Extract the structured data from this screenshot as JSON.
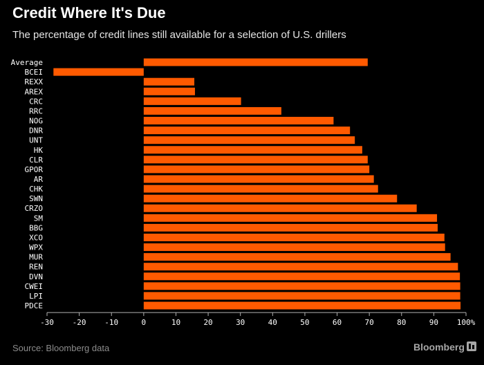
{
  "title": "Credit Where It's Due",
  "subtitle": "The percentage of credit lines still available for a selection of U.S. drillers",
  "source": "Source: Bloomberg data",
  "brand": "Bloomberg",
  "colors": {
    "background": "#000000",
    "bar": "#ff5a00",
    "text": "#ffffff",
    "axis": "#b3b3b3",
    "muted": "#8c8c8c"
  },
  "chart_data": {
    "type": "bar",
    "orientation": "horizontal",
    "categories": [
      "Average",
      "BCEI",
      "REXX",
      "AREX",
      "CRC",
      "RRC",
      "NOG",
      "DNR",
      "UNT",
      "HK",
      "CLR",
      "GPOR",
      "AR",
      "CHK",
      "SWN",
      "CRZO",
      "SM",
      "BBG",
      "XCO",
      "WPX",
      "MUR",
      "REN",
      "DVN",
      "CWEI",
      "LPI",
      "PDCE"
    ],
    "values": [
      69.5,
      -28,
      15.7,
      15.9,
      30.2,
      42.7,
      58.9,
      64,
      65.5,
      67.8,
      69.5,
      70,
      71.4,
      72.7,
      78.6,
      84.7,
      91,
      91.2,
      93.3,
      93.5,
      95.2,
      97.5,
      98.1,
      98.2,
      98.2,
      98.3
    ],
    "xlim": [
      -30,
      100
    ],
    "xticks": [
      -30,
      -20,
      -10,
      0,
      10,
      20,
      30,
      40,
      50,
      60,
      70,
      80,
      90,
      100
    ],
    "xtick_labels": [
      "-30",
      "-20",
      "-10",
      "0",
      "10",
      "20",
      "30",
      "40",
      "50",
      "60",
      "70",
      "80",
      "90",
      "100%"
    ],
    "title": "Credit Where It's Due",
    "subtitle": "The percentage of credit lines still available for a selection of U.S. drillers",
    "xlabel": "",
    "ylabel": "",
    "grid": false,
    "legend": "none"
  }
}
